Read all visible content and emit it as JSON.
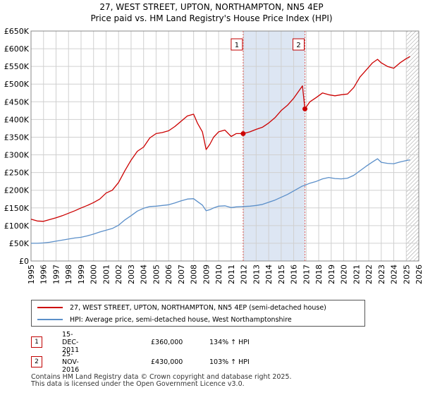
{
  "title_line1": "27, WEST STREET, UPTON, NORTHAMPTON, NN5 4EP",
  "title_line2": "Price paid vs. HM Land Registry's House Price Index (HPI)",
  "colors": {
    "price_line": "#cc0000",
    "hpi_line": "#5b8fc9",
    "shade": "#dde6f3",
    "grid": "#d0d0d0",
    "marker_line": "#e06060"
  },
  "legend": {
    "price_label": "27, WEST STREET, UPTON, NORTHAMPTON, NN5 4EP (semi-detached house)",
    "hpi_label": "HPI: Average price, semi-detached house, West Northamptonshire"
  },
  "transactions": [
    {
      "label": "1",
      "date": "15-DEC-2011",
      "price": "£360,000",
      "hpi_change": "134% ↑ HPI"
    },
    {
      "label": "2",
      "date": "25-NOV-2016",
      "price": "£430,000",
      "hpi_change": "103% ↑ HPI"
    }
  ],
  "footer": {
    "line1": "Contains HM Land Registry data © Crown copyright and database right 2025.",
    "line2": "This data is licensed under the Open Government Licence v3.0."
  },
  "chart_data": {
    "type": "line",
    "title": "27, WEST STREET, UPTON, NORTHAMPTON, NN5 4EP — Price paid vs. HM Land Registry's House Price Index (HPI)",
    "xlabel": "",
    "ylabel": "",
    "xlim": [
      1995,
      2026
    ],
    "ylim": [
      0,
      650000
    ],
    "x_ticks": [
      1995,
      1996,
      1997,
      1998,
      1999,
      2000,
      2001,
      2002,
      2003,
      2004,
      2005,
      2006,
      2007,
      2008,
      2009,
      2010,
      2011,
      2012,
      2013,
      2014,
      2015,
      2016,
      2017,
      2018,
      2019,
      2020,
      2021,
      2022,
      2023,
      2024,
      2025,
      2026
    ],
    "y_ticks": [
      0,
      50000,
      100000,
      150000,
      200000,
      250000,
      300000,
      350000,
      400000,
      450000,
      500000,
      550000,
      600000,
      650000
    ],
    "y_tick_labels": [
      "£0",
      "£50K",
      "£100K",
      "£150K",
      "£200K",
      "£250K",
      "£300K",
      "£350K",
      "£400K",
      "£450K",
      "£500K",
      "£550K",
      "£600K",
      "£650K"
    ],
    "shaded_range": [
      2011.96,
      2016.9
    ],
    "hatched_from": 2025.0,
    "series": [
      {
        "name": "27, WEST STREET, UPTON, NORTHAMPTON, NN5 4EP (semi-detached house)",
        "x": [
          1995.0,
          1995.5,
          1996.0,
          1996.5,
          1997.0,
          1997.5,
          1998.0,
          1998.5,
          1999.0,
          1999.5,
          2000.0,
          2000.5,
          2001.0,
          2001.5,
          2002.0,
          2002.5,
          2003.0,
          2003.5,
          2004.0,
          2004.5,
          2005.0,
          2005.5,
          2006.0,
          2006.5,
          2007.0,
          2007.5,
          2008.0,
          2008.3,
          2008.7,
          2009.0,
          2009.3,
          2009.6,
          2010.0,
          2010.5,
          2011.0,
          2011.4,
          2011.96,
          2012.5,
          2013.0,
          2013.5,
          2014.0,
          2014.5,
          2015.0,
          2015.5,
          2016.0,
          2016.4,
          2016.7,
          2016.9,
          2017.3,
          2017.8,
          2018.3,
          2018.8,
          2019.3,
          2019.8,
          2020.3,
          2020.8,
          2021.3,
          2021.8,
          2022.3,
          2022.7,
          2023.0,
          2023.5,
          2024.0,
          2024.5,
          2025.0,
          2025.3
        ],
        "values": [
          118000,
          113000,
          112000,
          117000,
          122000,
          128000,
          135000,
          142000,
          150000,
          157000,
          165000,
          175000,
          192000,
          200000,
          222000,
          255000,
          285000,
          310000,
          322000,
          348000,
          360000,
          363000,
          368000,
          380000,
          395000,
          410000,
          415000,
          390000,
          365000,
          315000,
          330000,
          350000,
          365000,
          370000,
          352000,
          360000,
          360000,
          365000,
          372000,
          378000,
          390000,
          405000,
          425000,
          440000,
          460000,
          480000,
          495000,
          430000,
          450000,
          462000,
          475000,
          470000,
          467000,
          470000,
          472000,
          490000,
          520000,
          540000,
          560000,
          570000,
          560000,
          550000,
          545000,
          560000,
          572000,
          578000
        ]
      },
      {
        "name": "HPI: Average price, semi-detached house, West Northamptonshire",
        "x": [
          1995.0,
          1995.5,
          1996.0,
          1996.5,
          1997.0,
          1997.5,
          1998.0,
          1998.5,
          1999.0,
          1999.5,
          2000.0,
          2000.5,
          2001.0,
          2001.5,
          2002.0,
          2002.5,
          2003.0,
          2003.5,
          2004.0,
          2004.5,
          2005.0,
          2005.5,
          2006.0,
          2006.5,
          2007.0,
          2007.5,
          2008.0,
          2008.3,
          2008.7,
          2009.0,
          2009.3,
          2009.6,
          2010.0,
          2010.5,
          2011.0,
          2011.4,
          2011.96,
          2012.5,
          2013.0,
          2013.5,
          2014.0,
          2014.5,
          2015.0,
          2015.5,
          2016.0,
          2016.4,
          2016.7,
          2016.9,
          2017.3,
          2017.8,
          2018.3,
          2018.8,
          2019.3,
          2019.8,
          2020.3,
          2020.8,
          2021.3,
          2021.8,
          2022.3,
          2022.7,
          2023.0,
          2023.5,
          2024.0,
          2024.5,
          2025.0,
          2025.3
        ],
        "values": [
          50000,
          50000,
          51000,
          53000,
          56000,
          59000,
          62000,
          65000,
          67000,
          71000,
          76000,
          82000,
          87000,
          92000,
          101000,
          116000,
          128000,
          141000,
          149000,
          154000,
          155000,
          157000,
          159000,
          164000,
          170000,
          175000,
          176000,
          168000,
          158000,
          142000,
          145000,
          150000,
          155000,
          156000,
          151000,
          153000,
          154000,
          155000,
          157000,
          160000,
          166000,
          172000,
          180000,
          188000,
          198000,
          206000,
          212000,
          214000,
          220000,
          225000,
          232000,
          236000,
          233000,
          232000,
          234000,
          242000,
          255000,
          268000,
          280000,
          289000,
          279000,
          276000,
          275000,
          280000,
          284000,
          286000
        ]
      }
    ],
    "annotations": [
      {
        "label": "1",
        "x": 2011.96,
        "y": 360000
      },
      {
        "label": "2",
        "x": 2016.9,
        "y": 430000
      }
    ]
  }
}
